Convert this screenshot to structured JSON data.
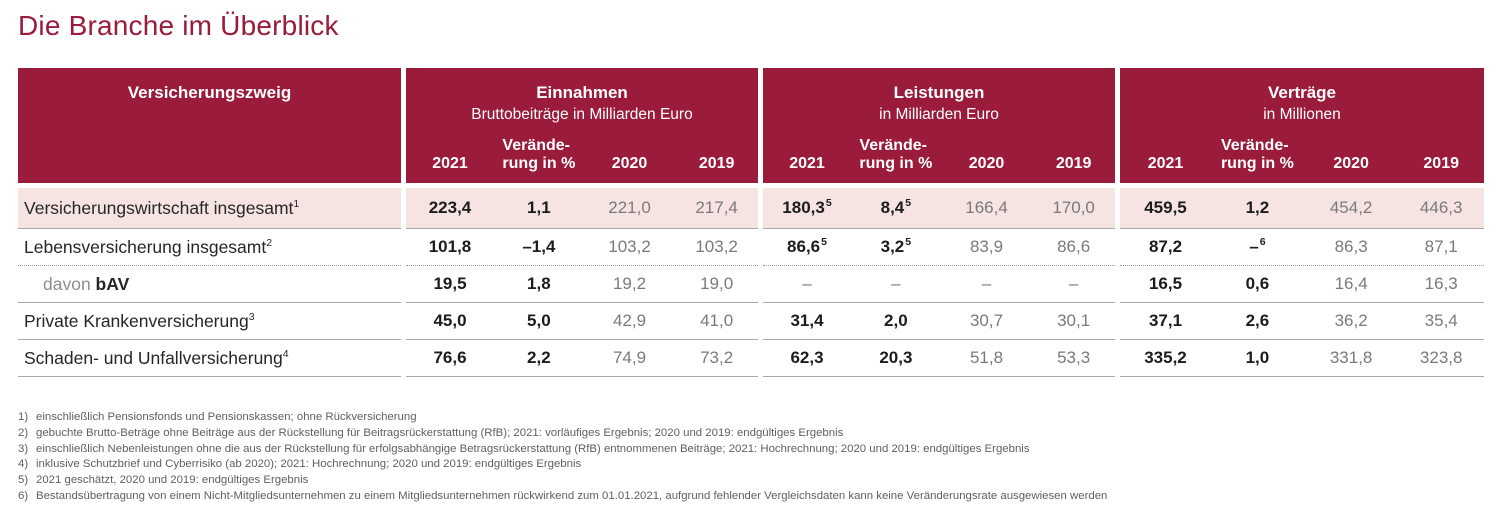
{
  "title": "Die Branche im Überblick",
  "colors": {
    "brand": "#9a1b3a",
    "highlight_row": "#f5e4e1",
    "muted_value": "#7a7a7a"
  },
  "table": {
    "corner_header": "Versicherungszweig",
    "groups": [
      {
        "id": "einnahmen",
        "title": "Einnahmen",
        "subtitle": "Bruttobeiträge in Milliarden Euro"
      },
      {
        "id": "leistungen",
        "title": "Leistungen",
        "subtitle": "in Milliarden Euro"
      },
      {
        "id": "vertraege",
        "title": "Verträge",
        "subtitle": "in Millionen"
      }
    ],
    "year_headers": [
      {
        "line1": "2021"
      },
      {
        "line1": "Verände-",
        "line2": "rung in %"
      },
      {
        "line1": "2020"
      },
      {
        "line1": "2019"
      }
    ],
    "rows": [
      {
        "label": "Versicherungswirtschaft insgesamt",
        "label_sup": "1",
        "highlight": true,
        "cells": [
          [
            {
              "v": "223,4"
            },
            {
              "v": "1,1"
            },
            {
              "v": "221,0"
            },
            {
              "v": "217,4"
            }
          ],
          [
            {
              "v": "180,3",
              "sup": "5"
            },
            {
              "v": "8,4",
              "sup": "5"
            },
            {
              "v": "166,4"
            },
            {
              "v": "170,0"
            }
          ],
          [
            {
              "v": "459,5"
            },
            {
              "v": "1,2"
            },
            {
              "v": "454,2"
            },
            {
              "v": "446,3"
            }
          ]
        ]
      },
      {
        "label": "Lebensversicherung insgesamt",
        "label_sup": "2",
        "separator": "dotted",
        "cells": [
          [
            {
              "v": "101,8"
            },
            {
              "v": "–1,4"
            },
            {
              "v": "103,2"
            },
            {
              "v": "103,2"
            }
          ],
          [
            {
              "v": "86,6",
              "sup": "5"
            },
            {
              "v": "3,2",
              "sup": "5"
            },
            {
              "v": "83,9"
            },
            {
              "v": "86,6"
            }
          ],
          [
            {
              "v": "87,2"
            },
            {
              "v": "–",
              "sup": "6"
            },
            {
              "v": "86,3"
            },
            {
              "v": "87,1"
            }
          ]
        ]
      },
      {
        "label_prefix": "davon ",
        "label": "bAV",
        "indent": true,
        "cells": [
          [
            {
              "v": "19,5"
            },
            {
              "v": "1,8"
            },
            {
              "v": "19,2"
            },
            {
              "v": "19,0"
            }
          ],
          [
            {
              "v": "–",
              "muted": true
            },
            {
              "v": "–",
              "muted": true
            },
            {
              "v": "–"
            },
            {
              "v": "–"
            }
          ],
          [
            {
              "v": "16,5"
            },
            {
              "v": "0,6"
            },
            {
              "v": "16,4"
            },
            {
              "v": "16,3"
            }
          ]
        ]
      },
      {
        "label": "Private Krankenversicherung",
        "label_sup": "3",
        "cells": [
          [
            {
              "v": "45,0"
            },
            {
              "v": "5,0"
            },
            {
              "v": "42,9"
            },
            {
              "v": "41,0"
            }
          ],
          [
            {
              "v": "31,4"
            },
            {
              "v": "2,0"
            },
            {
              "v": "30,7"
            },
            {
              "v": "30,1"
            }
          ],
          [
            {
              "v": "37,1"
            },
            {
              "v": "2,6"
            },
            {
              "v": "36,2"
            },
            {
              "v": "35,4"
            }
          ]
        ]
      },
      {
        "label": "Schaden- und Unfallversicherung",
        "label_sup": "4",
        "cells": [
          [
            {
              "v": "76,6"
            },
            {
              "v": "2,2"
            },
            {
              "v": "74,9"
            },
            {
              "v": "73,2"
            }
          ],
          [
            {
              "v": "62,3"
            },
            {
              "v": "20,3"
            },
            {
              "v": "51,8"
            },
            {
              "v": "53,3"
            }
          ],
          [
            {
              "v": "335,2"
            },
            {
              "v": "1,0"
            },
            {
              "v": "331,8"
            },
            {
              "v": "323,8"
            }
          ]
        ]
      }
    ]
  },
  "footnotes": [
    {
      "marker": "1)",
      "text": "einschließlich Pensionsfonds und Pensionskassen; ohne Rückversicherung"
    },
    {
      "marker": "2)",
      "text": "gebuchte Brutto-Beträge ohne Beiträge aus der Rückstellung für Beitragsrückerstattung (RfB); 2021: vorläufiges Ergebnis; 2020 und 2019: endgültiges Ergebnis"
    },
    {
      "marker": "3)",
      "text": "einschließlich Nebenleistungen ohne die aus der Rückstellung für erfolgsabhängige Betragsrückerstattung (RfB) entnommenen Beiträge; 2021: Hochrechnung; 2020 und 2019: endgültiges Ergebnis"
    },
    {
      "marker": "4)",
      "text": "inklusive Schutzbrief und Cyberrisiko (ab 2020); 2021: Hochrechnung; 2020 und 2019: endgültiges Ergebnis"
    },
    {
      "marker": "5)",
      "text": "2021 geschätzt, 2020 und 2019: endgültiges Ergebnis"
    },
    {
      "marker": "6)",
      "text": "Bestandsübertragung von einem Nicht-Mitgliedsunternehmen zu einem Mitgliedsunternehmen rückwirkend zum 01.01.2021, aufgrund fehlender Vergleichsdaten kann keine Veränderungsrate ausgewiesen werden"
    }
  ]
}
